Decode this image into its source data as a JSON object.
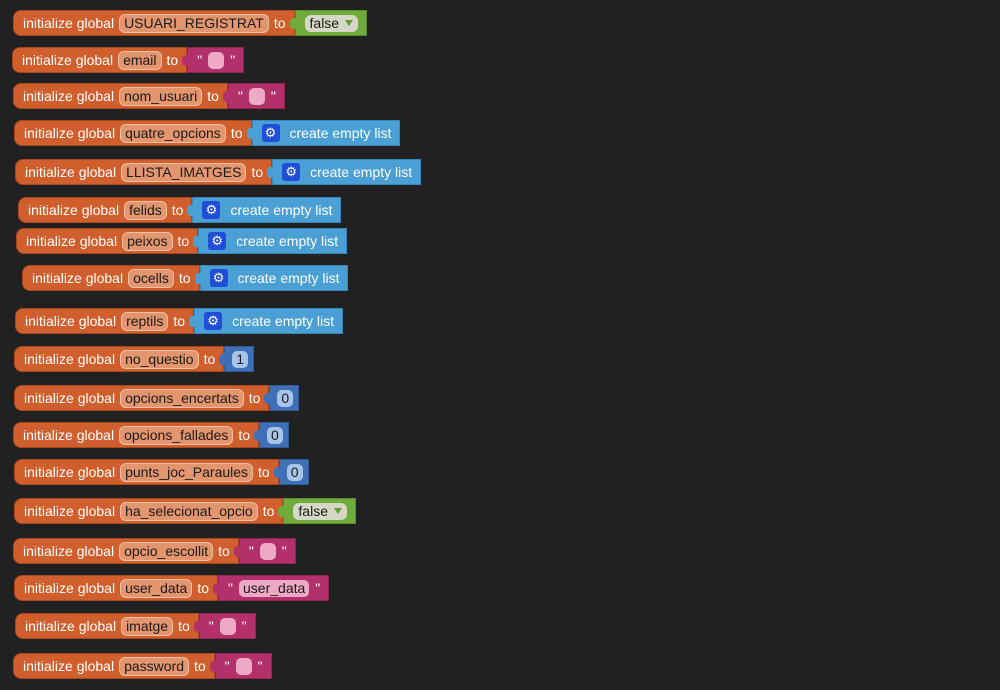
{
  "init_label": "initialize global",
  "to_label": "to",
  "create_empty_list_label": "create empty list",
  "quote": "\"",
  "blocks": [
    {
      "name": "USUARI_REGISTRAT",
      "type": "bool",
      "value": "false"
    },
    {
      "name": "email",
      "type": "text",
      "value": ""
    },
    {
      "name": "nom_usuari",
      "type": "text",
      "value": ""
    },
    {
      "name": "quatre_opcions",
      "type": "list",
      "value": ""
    },
    {
      "name": "LLISTA_IMATGES",
      "type": "list",
      "value": ""
    },
    {
      "name": "felids",
      "type": "list",
      "value": ""
    },
    {
      "name": "peixos",
      "type": "list",
      "value": ""
    },
    {
      "name": "ocells",
      "type": "list",
      "value": ""
    },
    {
      "name": "reptils",
      "type": "list",
      "value": ""
    },
    {
      "name": "no_questio",
      "type": "num",
      "value": "1"
    },
    {
      "name": "opcions_encertats",
      "type": "num",
      "value": "0"
    },
    {
      "name": "opcions_fallades",
      "type": "num",
      "value": "0"
    },
    {
      "name": "punts_joc_Paraules",
      "type": "num",
      "value": "0"
    },
    {
      "name": "ha_selecionat_opcio",
      "type": "bool",
      "value": "false"
    },
    {
      "name": "opcio_escollit",
      "type": "text",
      "value": ""
    },
    {
      "name": "user_data",
      "type": "text",
      "value": "user_data"
    },
    {
      "name": "imatge",
      "type": "text",
      "value": ""
    },
    {
      "name": "password",
      "type": "text",
      "value": ""
    }
  ]
}
